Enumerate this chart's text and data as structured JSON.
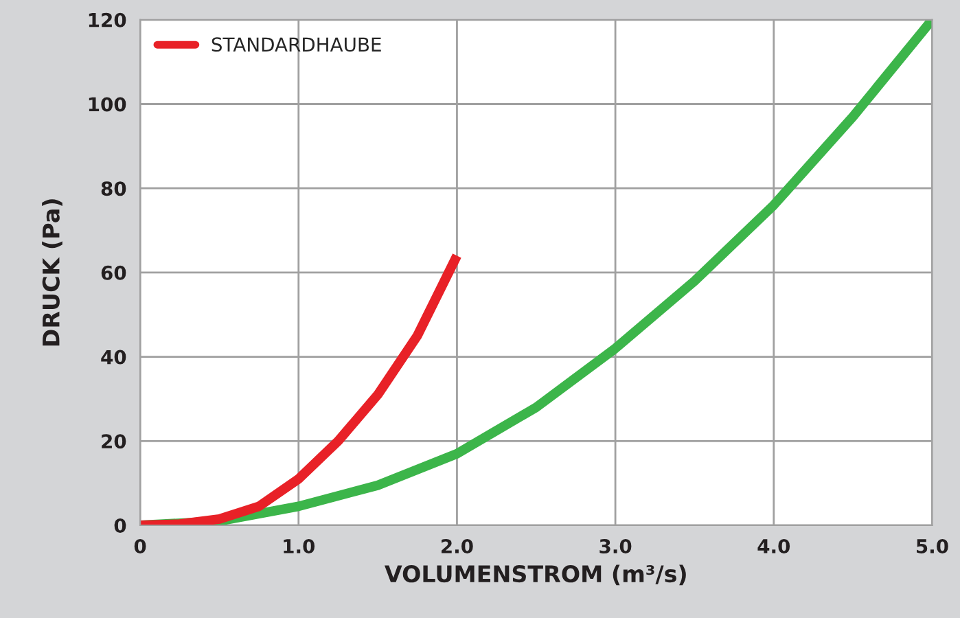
{
  "chart_data": {
    "type": "line",
    "xlabel": "VOLUMENSTROM (m³/s)",
    "ylabel": "DRUCK (Pa)",
    "series": [
      {
        "color": "#3cb54a",
        "x": [
          0,
          0.25,
          0.5,
          1.0,
          1.5,
          2.0,
          2.5,
          3.0,
          3.5,
          4.0,
          4.5,
          5.0
        ],
        "values": [
          0,
          null,
          1,
          4.5,
          9.5,
          17,
          28,
          42,
          58,
          76,
          97,
          120
        ]
      },
      {
        "name": "STANDARDHAUBE",
        "color": "#e82127",
        "x": [
          0,
          0.25,
          0.5,
          0.75,
          1.0,
          1.25,
          1.5,
          1.75,
          2.0
        ],
        "values": [
          0,
          0.3,
          1.5,
          4.5,
          11,
          20,
          31,
          45,
          64
        ]
      }
    ],
    "xlim": [
      0,
      5
    ],
    "xticks": [
      0,
      {
        "value": 1,
        "label": "1.0"
      },
      {
        "value": 2,
        "label": "2.0"
      },
      {
        "value": 3,
        "label": "3.0"
      },
      {
        "value": 4,
        "label": "4.0"
      },
      {
        "value": 5,
        "label": "5.0"
      }
    ],
    "ylim": [
      0,
      120
    ],
    "yticks": [
      0,
      20,
      40,
      60,
      80,
      100,
      120
    ],
    "grid": true,
    "legend": "top left",
    "line_style": "solid"
  }
}
